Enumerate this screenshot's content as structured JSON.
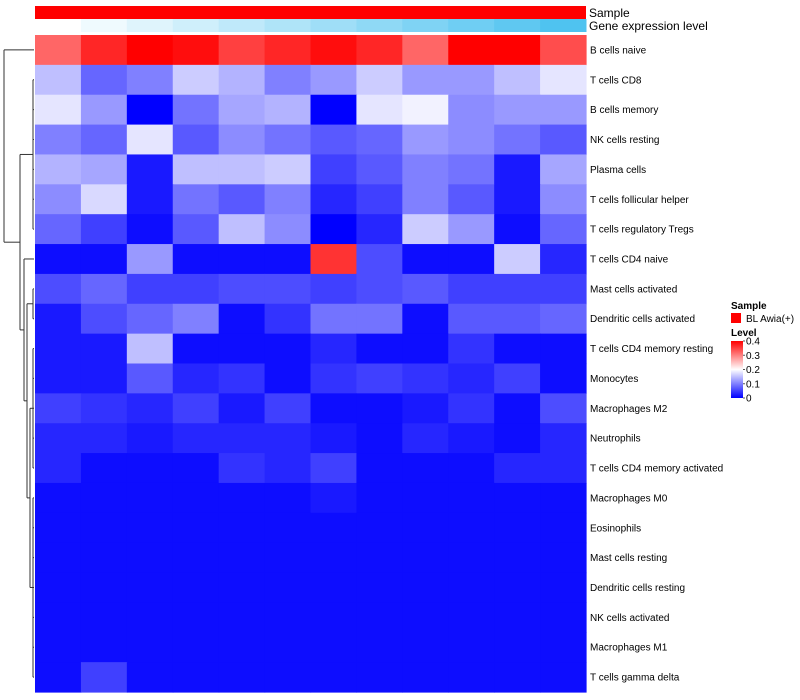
{
  "chart_data": {
    "type": "heatmap",
    "annotations": {
      "sample": {
        "label": "Sample",
        "color": "#ff0000"
      },
      "gene_expression": {
        "label": "Gene expression level",
        "values": [
          0.0,
          0.1,
          0.2,
          0.3,
          0.4,
          0.5,
          0.6,
          0.7,
          0.8,
          0.9,
          1.0,
          1.1
        ],
        "color_low": "#ffffff",
        "color_high": "#4fc3f0"
      }
    },
    "rows": [
      "B cells naive",
      "T cells CD8",
      "B cells memory",
      "NK cells resting",
      "Plasma cells",
      "T cells follicular helper",
      "T cells regulatory  Tregs",
      "T cells CD4 naive",
      "Mast cells activated",
      "Dendritic cells activated",
      "T cells CD4 memory resting",
      "Monocytes",
      "Macrophages M2",
      "Neutrophils",
      "T cells CD4 memory activated",
      "Macrophages M0",
      "Eosinophils",
      "Mast cells resting",
      "Dendritic cells resting",
      "NK cells activated",
      "Macrophages M1",
      "T cells gamma delta"
    ],
    "values": [
      [
        0.32,
        0.37,
        0.41,
        0.39,
        0.35,
        0.37,
        0.39,
        0.37,
        0.32,
        0.41,
        0.41,
        0.34
      ],
      [
        0.15,
        0.08,
        0.1,
        0.16,
        0.14,
        0.1,
        0.12,
        0.16,
        0.12,
        0.12,
        0.15,
        0.18
      ],
      [
        0.18,
        0.12,
        0.0,
        0.09,
        0.13,
        0.14,
        0.0,
        0.18,
        0.19,
        0.11,
        0.12,
        0.12
      ],
      [
        0.1,
        0.08,
        0.18,
        0.07,
        0.11,
        0.09,
        0.07,
        0.08,
        0.12,
        0.11,
        0.09,
        0.07
      ],
      [
        0.14,
        0.13,
        0.02,
        0.15,
        0.15,
        0.16,
        0.05,
        0.07,
        0.1,
        0.09,
        0.02,
        0.13
      ],
      [
        0.11,
        0.17,
        0.02,
        0.09,
        0.07,
        0.1,
        0.03,
        0.05,
        0.1,
        0.07,
        0.02,
        0.11
      ],
      [
        0.08,
        0.05,
        0.01,
        0.07,
        0.15,
        0.11,
        0.0,
        0.03,
        0.16,
        0.12,
        0.01,
        0.08
      ],
      [
        0.01,
        0.01,
        0.12,
        0.01,
        0.01,
        0.01,
        0.36,
        0.06,
        0.01,
        0.01,
        0.16,
        0.03
      ],
      [
        0.06,
        0.08,
        0.05,
        0.05,
        0.06,
        0.06,
        0.05,
        0.06,
        0.07,
        0.05,
        0.05,
        0.05
      ],
      [
        0.02,
        0.06,
        0.08,
        0.1,
        0.01,
        0.04,
        0.09,
        0.09,
        0.01,
        0.07,
        0.07,
        0.08
      ],
      [
        0.02,
        0.02,
        0.15,
        0.01,
        0.01,
        0.01,
        0.03,
        0.01,
        0.01,
        0.04,
        0.01,
        0.01
      ],
      [
        0.02,
        0.02,
        0.07,
        0.03,
        0.04,
        0.01,
        0.04,
        0.05,
        0.04,
        0.03,
        0.05,
        0.01
      ],
      [
        0.05,
        0.04,
        0.03,
        0.05,
        0.02,
        0.05,
        0.01,
        0.01,
        0.02,
        0.04,
        0.01,
        0.06
      ],
      [
        0.03,
        0.03,
        0.02,
        0.03,
        0.03,
        0.03,
        0.02,
        0.01,
        0.03,
        0.02,
        0.01,
        0.03
      ],
      [
        0.03,
        0.01,
        0.01,
        0.01,
        0.04,
        0.03,
        0.05,
        0.01,
        0.01,
        0.01,
        0.03,
        0.03
      ],
      [
        0.01,
        0.01,
        0.01,
        0.01,
        0.01,
        0.01,
        0.02,
        0.01,
        0.01,
        0.01,
        0.01,
        0.01
      ],
      [
        0.01,
        0.01,
        0.01,
        0.01,
        0.01,
        0.01,
        0.01,
        0.01,
        0.01,
        0.01,
        0.01,
        0.01
      ],
      [
        0.01,
        0.01,
        0.01,
        0.01,
        0.01,
        0.01,
        0.01,
        0.01,
        0.01,
        0.01,
        0.01,
        0.01
      ],
      [
        0.01,
        0.01,
        0.01,
        0.01,
        0.01,
        0.01,
        0.01,
        0.01,
        0.01,
        0.01,
        0.01,
        0.01
      ],
      [
        0.01,
        0.01,
        0.01,
        0.01,
        0.01,
        0.01,
        0.01,
        0.01,
        0.01,
        0.01,
        0.01,
        0.01
      ],
      [
        0.01,
        0.01,
        0.01,
        0.01,
        0.01,
        0.01,
        0.01,
        0.01,
        0.01,
        0.01,
        0.01,
        0.01
      ],
      [
        0.01,
        0.05,
        0.01,
        0.01,
        0.01,
        0.01,
        0.01,
        0.01,
        0.01,
        0.01,
        0.01,
        0.01
      ]
    ],
    "color_scale": {
      "min": 0,
      "max": 0.4,
      "low": "#0000ff",
      "mid": "#ffffff",
      "high": "#ff0000",
      "midpoint": 0.2,
      "ticks": [
        "0",
        "0.1",
        "0.2",
        "0.3",
        "0.4"
      ]
    },
    "legend": {
      "sample_title": "Sample",
      "sample_entry": "BL Awia(+)",
      "level_title": "Level",
      "placement": "right"
    },
    "row_dendrogram": true
  }
}
